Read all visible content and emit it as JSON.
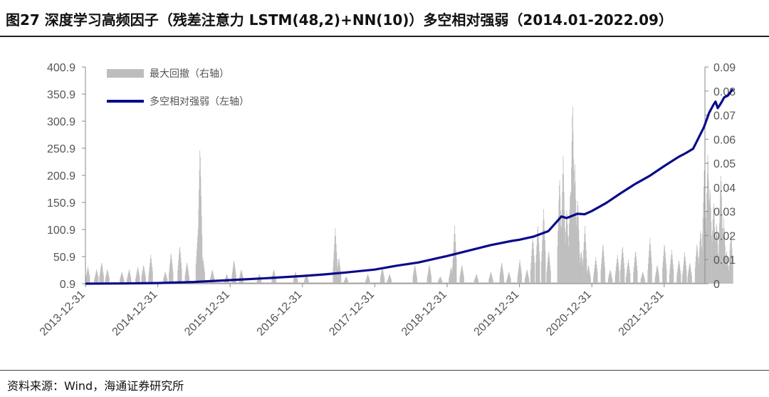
{
  "header": {
    "title": "图27 深度学习高频因子（残差注意力 LSTM(48,2)+NN(10)）多空相对强弱（2014.01-2022.09）"
  },
  "footer": {
    "source": "资料来源：Wind，海通证券研究所"
  },
  "colors": {
    "line": "#0a0a8c",
    "bars": "#bdbdbd",
    "axis": "#888888"
  },
  "chart_data": {
    "type": "line",
    "x_tick_labels": [
      "2013-12-31",
      "2014-12-31",
      "2015-12-31",
      "2016-12-31",
      "2017-12-31",
      "2018-12-31",
      "2019-12-31",
      "2020-12-31",
      "2021-12-31"
    ],
    "y_left": {
      "ticks": [
        "0.9",
        "50.9",
        "100.9",
        "150.9",
        "200.9",
        "250.9",
        "300.9",
        "350.9",
        "400.9"
      ],
      "lim": [
        0.9,
        400.9
      ]
    },
    "y_right": {
      "ticks": [
        "0",
        "0.01",
        "0.02",
        "0.03",
        "0.04",
        "0.05",
        "0.06",
        "0.07",
        "0.08",
        "0.09"
      ],
      "lim": [
        0,
        0.09
      ]
    },
    "legend": {
      "position": "top-left",
      "entries": [
        {
          "label": "最大回撤（右轴）",
          "kind": "bar",
          "axis": "right"
        },
        {
          "label": "多空相对强弱（左轴）",
          "kind": "line",
          "axis": "left"
        }
      ]
    },
    "series": [
      {
        "name": "多空相对强弱（左轴）",
        "kind": "line",
        "axis": "left",
        "points": [
          [
            2014.0,
            0.9
          ],
          [
            2014.5,
            1.3
          ],
          [
            2015.0,
            2.0
          ],
          [
            2015.5,
            4.0
          ],
          [
            2016.0,
            7.5
          ],
          [
            2016.5,
            11.0
          ],
          [
            2017.0,
            15.0
          ],
          [
            2017.3,
            18.0
          ],
          [
            2017.6,
            21.5
          ],
          [
            2018.0,
            27.0
          ],
          [
            2018.3,
            34.0
          ],
          [
            2018.6,
            40.0
          ],
          [
            2018.9,
            49.0
          ],
          [
            2019.0,
            52.0
          ],
          [
            2019.3,
            62.0
          ],
          [
            2019.6,
            72.0
          ],
          [
            2019.9,
            80.0
          ],
          [
            2020.0,
            82.0
          ],
          [
            2020.2,
            88.0
          ],
          [
            2020.4,
            98.0
          ],
          [
            2020.58,
            125.0
          ],
          [
            2020.65,
            122.0
          ],
          [
            2020.8,
            130.0
          ],
          [
            2020.9,
            129.0
          ],
          [
            2021.0,
            135.0
          ],
          [
            2021.2,
            150.0
          ],
          [
            2021.4,
            168.0
          ],
          [
            2021.6,
            185.0
          ],
          [
            2021.8,
            200.0
          ],
          [
            2022.0,
            218.0
          ],
          [
            2022.2,
            235.0
          ],
          [
            2022.3,
            242.0
          ],
          [
            2022.4,
            250.0
          ],
          [
            2022.55,
            290.0
          ],
          [
            2022.62,
            316.0
          ],
          [
            2022.68,
            331.0
          ],
          [
            2022.71,
            337.0
          ],
          [
            2022.74,
            325.0
          ],
          [
            2022.78,
            333.0
          ],
          [
            2022.83,
            345.0
          ],
          [
            2022.88,
            348.0
          ],
          [
            2022.93,
            357.0
          ],
          [
            2022.95,
            360.0
          ]
        ]
      },
      {
        "name": "最大回撤（右轴）",
        "kind": "bar",
        "axis": "right",
        "baseline": 0.0005,
        "spikes": [
          [
            2014.03,
            0.007
          ],
          [
            2014.15,
            0.006
          ],
          [
            2014.22,
            0.009
          ],
          [
            2014.3,
            0.006
          ],
          [
            2014.5,
            0.005
          ],
          [
            2014.6,
            0.006
          ],
          [
            2014.72,
            0.007
          ],
          [
            2014.8,
            0.008
          ],
          [
            2014.9,
            0.012
          ],
          [
            2015.1,
            0.005
          ],
          [
            2015.18,
            0.013
          ],
          [
            2015.3,
            0.016
          ],
          [
            2015.4,
            0.009
          ],
          [
            2015.55,
            0.021
          ],
          [
            2015.58,
            0.058
          ],
          [
            2015.62,
            0.011
          ],
          [
            2015.75,
            0.006
          ],
          [
            2015.95,
            0.004
          ],
          [
            2016.05,
            0.01
          ],
          [
            2016.15,
            0.006
          ],
          [
            2016.4,
            0.004
          ],
          [
            2016.6,
            0.006
          ],
          [
            2016.9,
            0.005
          ],
          [
            2017.05,
            0.004
          ],
          [
            2017.45,
            0.023
          ],
          [
            2017.5,
            0.011
          ],
          [
            2017.6,
            0.003
          ],
          [
            2017.9,
            0.004
          ],
          [
            2018.1,
            0.007
          ],
          [
            2018.2,
            0.004
          ],
          [
            2018.55,
            0.008
          ],
          [
            2018.75,
            0.008
          ],
          [
            2018.9,
            0.003
          ],
          [
            2019.05,
            0.007
          ],
          [
            2019.1,
            0.024
          ],
          [
            2019.2,
            0.008
          ],
          [
            2019.4,
            0.004
          ],
          [
            2019.6,
            0.005
          ],
          [
            2019.75,
            0.009
          ],
          [
            2019.85,
            0.005
          ],
          [
            2020.0,
            0.01
          ],
          [
            2020.1,
            0.006
          ],
          [
            2020.18,
            0.02
          ],
          [
            2020.25,
            0.025
          ],
          [
            2020.33,
            0.031
          ],
          [
            2020.4,
            0.014
          ],
          [
            2020.55,
            0.045
          ],
          [
            2020.6,
            0.053
          ],
          [
            2020.65,
            0.032
          ],
          [
            2020.7,
            0.04
          ],
          [
            2020.73,
            0.077
          ],
          [
            2020.76,
            0.052
          ],
          [
            2020.8,
            0.036
          ],
          [
            2020.85,
            0.014
          ],
          [
            2020.9,
            0.024
          ],
          [
            2020.95,
            0.008
          ],
          [
            2021.05,
            0.011
          ],
          [
            2021.15,
            0.017
          ],
          [
            2021.25,
            0.006
          ],
          [
            2021.35,
            0.012
          ],
          [
            2021.42,
            0.016
          ],
          [
            2021.5,
            0.01
          ],
          [
            2021.6,
            0.014
          ],
          [
            2021.7,
            0.005
          ],
          [
            2021.8,
            0.019
          ],
          [
            2021.9,
            0.008
          ],
          [
            2022.0,
            0.017
          ],
          [
            2022.1,
            0.014
          ],
          [
            2022.2,
            0.01
          ],
          [
            2022.28,
            0.013
          ],
          [
            2022.35,
            0.009
          ],
          [
            2022.45,
            0.017
          ],
          [
            2022.5,
            0.023
          ],
          [
            2022.55,
            0.047
          ],
          [
            2022.6,
            0.056
          ],
          [
            2022.63,
            0.041
          ],
          [
            2022.68,
            0.035
          ],
          [
            2022.72,
            0.026
          ],
          [
            2022.78,
            0.047
          ],
          [
            2022.82,
            0.027
          ],
          [
            2022.86,
            0.014
          ],
          [
            2022.92,
            0.022
          ]
        ]
      }
    ]
  }
}
